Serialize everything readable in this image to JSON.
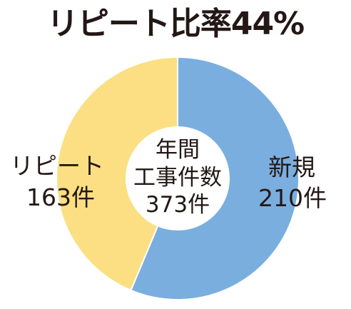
{
  "title": "リピート比率44%",
  "chart_data": {
    "type": "pie",
    "title": "リピート比率44%",
    "center_label": {
      "line1": "年間",
      "line2": "工事件数",
      "line3": "373件"
    },
    "total": 373,
    "slices": [
      {
        "name": "新規",
        "value": 210,
        "value_label": "210件",
        "color": "#7aaedf"
      },
      {
        "name": "リピート",
        "value": 163,
        "value_label": "163件",
        "color": "#fbdf82"
      }
    ]
  }
}
